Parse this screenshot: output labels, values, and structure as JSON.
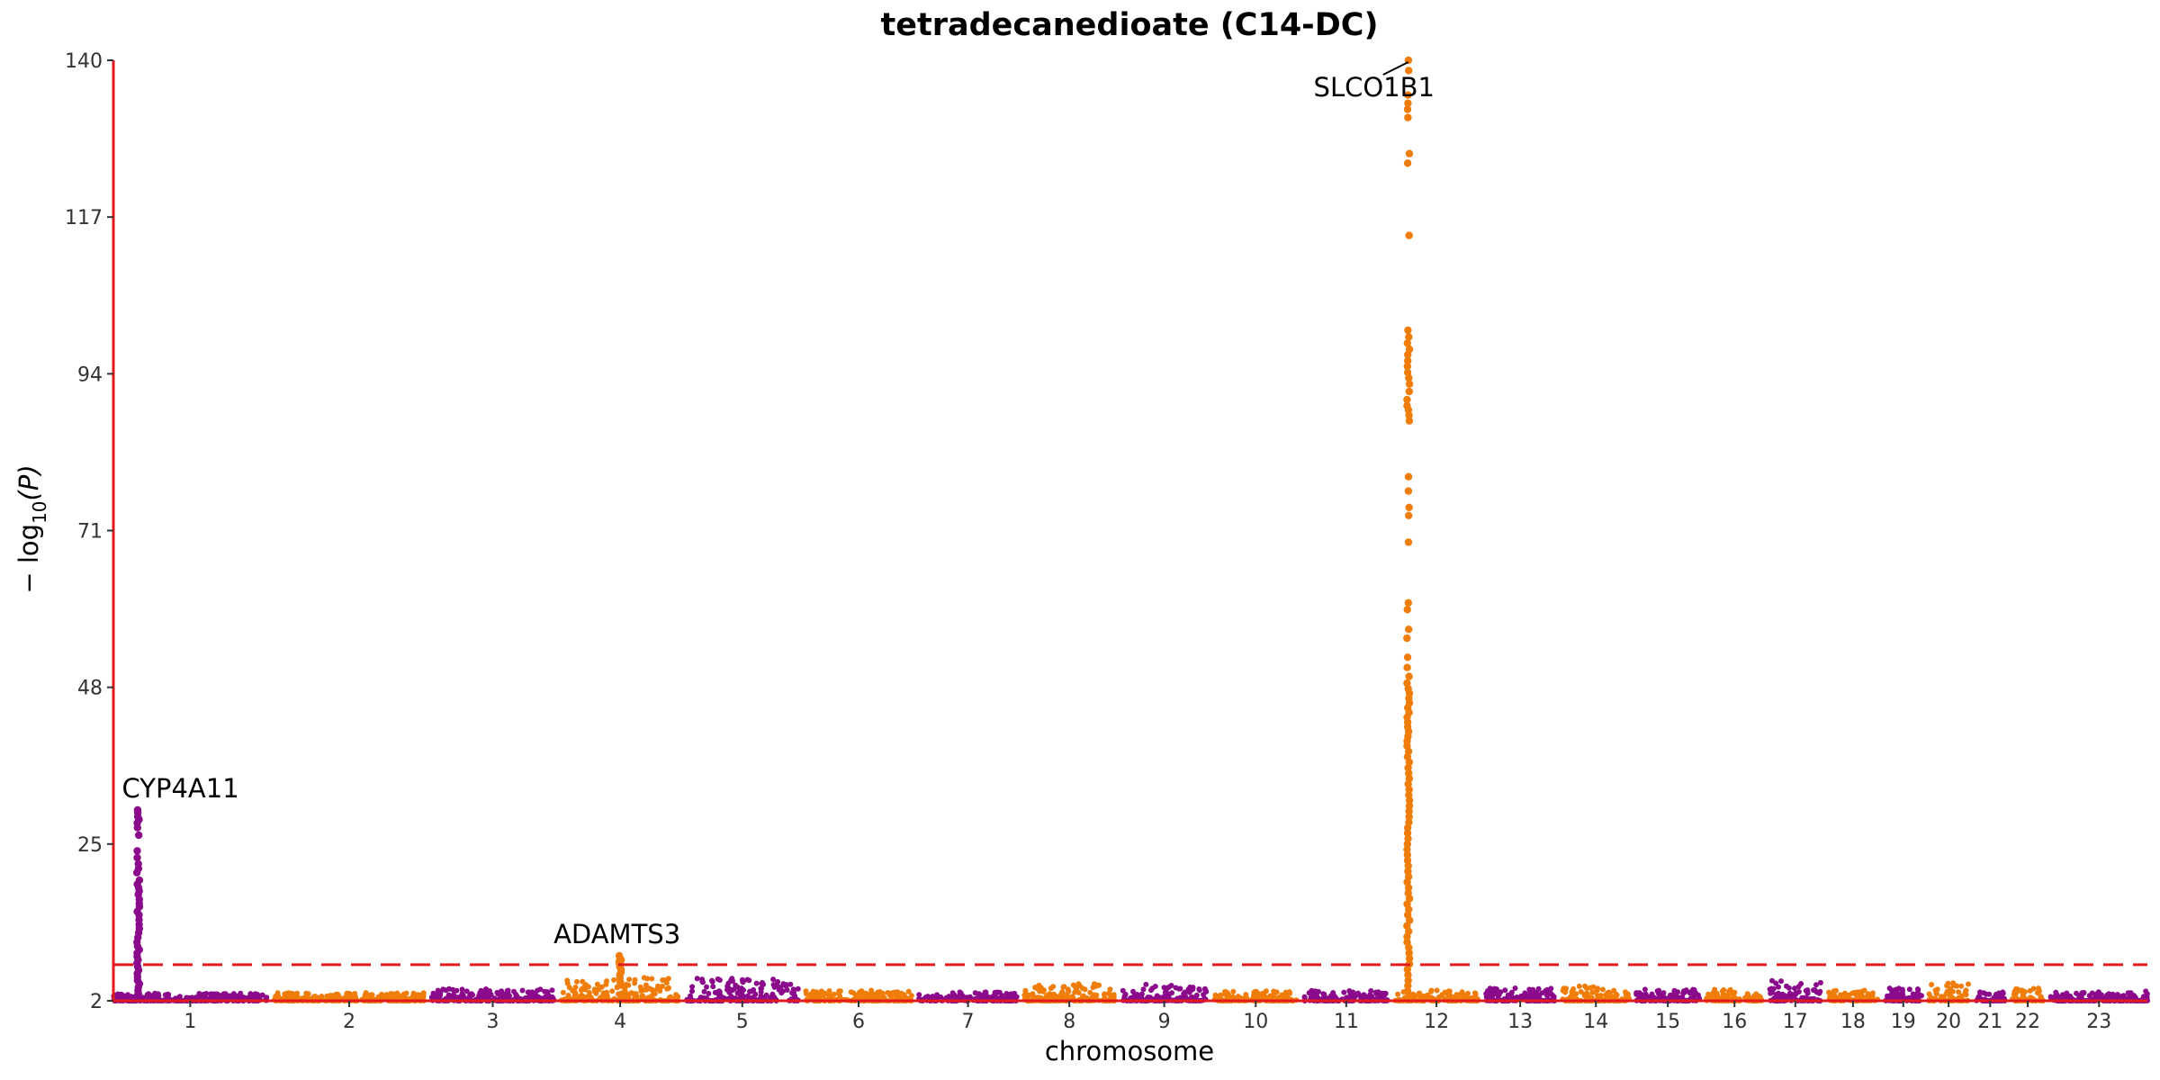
{
  "chart_data": {
    "type": "scatter",
    "subtype": "manhattan",
    "title": "tetradecanedioate (C14-DC)",
    "xlabel": "chromosome",
    "ylabel_main": "− log",
    "ylabel_sub": "10",
    "ylabel_tail": "(P)",
    "y_ticks": [
      2,
      25,
      48,
      71,
      94,
      117,
      140
    ],
    "ylim": [
      2,
      140
    ],
    "significance_line": 7.3,
    "axis_color": "#e31a1c",
    "colors": {
      "odd": "#8b0a8b",
      "even": "#f07d0a",
      "threshold": "#e31a1c"
    },
    "chromosomes": [
      {
        "label": "1",
        "len": 248,
        "max": 3.3
      },
      {
        "label": "2",
        "len": 242,
        "max": 3.4
      },
      {
        "label": "3",
        "len": 198,
        "max": 4.1
      },
      {
        "label": "4",
        "len": 190,
        "max": 6.0
      },
      {
        "label": "5",
        "len": 181,
        "max": 6.0
      },
      {
        "label": "6",
        "len": 171,
        "max": 3.8
      },
      {
        "label": "7",
        "len": 159,
        "max": 3.5
      },
      {
        "label": "8",
        "len": 145,
        "max": 5.0
      },
      {
        "label": "9",
        "len": 138,
        "max": 4.5
      },
      {
        "label": "10",
        "len": 134,
        "max": 3.7
      },
      {
        "label": "11",
        "len": 135,
        "max": 3.8
      },
      {
        "label": "12",
        "len": 133,
        "max": 3.8
      },
      {
        "label": "13",
        "len": 114,
        "max": 4.2
      },
      {
        "label": "14",
        "len": 107,
        "max": 4.5
      },
      {
        "label": "15",
        "len": 102,
        "max": 4.0
      },
      {
        "label": "16",
        "len": 90,
        "max": 4.0
      },
      {
        "label": "17",
        "len": 83,
        "max": 5.5
      },
      {
        "label": "18",
        "len": 80,
        "max": 3.8
      },
      {
        "label": "19",
        "len": 59,
        "max": 4.2
      },
      {
        "label": "20",
        "len": 64,
        "max": 5.3
      },
      {
        "label": "21",
        "len": 47,
        "max": 3.5
      },
      {
        "label": "22",
        "len": 51,
        "max": 4.2
      },
      {
        "label": "23",
        "len": 156,
        "max": 3.5
      }
    ],
    "peaks": [
      {
        "chr": "1",
        "pos": 40,
        "gene": "CYP4A11",
        "values": [
          30,
          29.6,
          29,
          28.6,
          28.1,
          27.4,
          26.3,
          24,
          23,
          22.1,
          21.4,
          20.8,
          19.7,
          19.1,
          18.6,
          18.1,
          17.6,
          16.9,
          16.3,
          15.8,
          15.1,
          14.6,
          13.9,
          13.2,
          12.6,
          12,
          11.3,
          10.6,
          10,
          9.5,
          9,
          8.5,
          8,
          7.5,
          7,
          6.5,
          6,
          5.5,
          5,
          4.5,
          4,
          3.5,
          3
        ]
      },
      {
        "chr": "4",
        "pos": 95,
        "gene": "ADAMTS3",
        "values": [
          8.6,
          8.3,
          8.0,
          7.7,
          7.4,
          7.0,
          6.6,
          6.2,
          5.8,
          5.3,
          4.8,
          4.3
        ]
      },
      {
        "chr": "12",
        "pos": 21,
        "gene": "SLCO1B1",
        "values": [
          140,
          138.5,
          134.9,
          133.7,
          132.8,
          131.6,
          126.3,
          124.9,
          114.3,
          100.4,
          99.4,
          98.5,
          97.6,
          96.8,
          95.9,
          95.1,
          94.2,
          93.4,
          92.5,
          91.4,
          90.2,
          89.3,
          88.7,
          87.9,
          87.1,
          78.9,
          76.8,
          74.4,
          73.2,
          69.3,
          60.4,
          59.4,
          56.5,
          55.2,
          52.4,
          50.9,
          49.6,
          48.6,
          47.8,
          47.1,
          46.4,
          45.7,
          45.0,
          44.3,
          43.6,
          42.9,
          42.2,
          41.5,
          40.8,
          40.1,
          39.4,
          38.6,
          37.8,
          37.0,
          36.2,
          35.4,
          34.6,
          33.8,
          33.0,
          32.2,
          31.4,
          30.6,
          29.8,
          29.0,
          28.2,
          27.4,
          26.6,
          25.8,
          25.0,
          24.2,
          23.4,
          22.6,
          21.8,
          21.0,
          20.2,
          19.4,
          18.6,
          17.8,
          17.0,
          16.2,
          15.4,
          14.6,
          13.8,
          13.0,
          12.2,
          11.4,
          10.6,
          9.8,
          9.0,
          8.2,
          7.4,
          6.6,
          5.8,
          5.0,
          4.2,
          3.4
        ]
      }
    ]
  }
}
